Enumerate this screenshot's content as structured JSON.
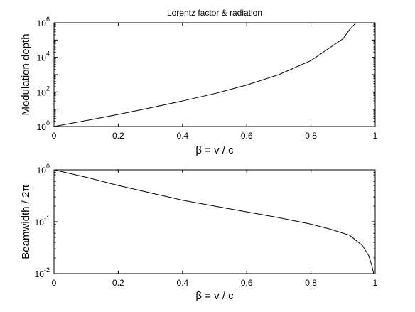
{
  "chart_data": [
    {
      "type": "line",
      "title": "Lorentz factor & radiation",
      "xlabel": "β = v / c",
      "ylabel": "Modulation depth",
      "xlim": [
        0,
        1
      ],
      "ylim": [
        1,
        1000000
      ],
      "yscale": "log",
      "grid": false,
      "x_ticks": [
        "0",
        "0.2",
        "0.4",
        "0.6",
        "0.8",
        "1"
      ],
      "y_ticks": [
        {
          "base": "10",
          "exp": "0"
        },
        {
          "base": "10",
          "exp": "2"
        },
        {
          "base": "10",
          "exp": "4"
        },
        {
          "base": "10",
          "exp": "6"
        }
      ],
      "series": [
        {
          "color": "#000000",
          "x": [
            0,
            0.1,
            0.2,
            0.3,
            0.4,
            0.5,
            0.6,
            0.7,
            0.8,
            0.9,
            0.92,
            0.94
          ],
          "y": [
            1,
            2.2,
            5,
            12,
            30,
            80,
            250,
            1000,
            6500,
            120000,
            400000,
            1000000
          ]
        }
      ]
    },
    {
      "type": "line",
      "title": "",
      "xlabel": "β = v / c",
      "ylabel": "Beamwidth / 2π",
      "xlim": [
        0,
        1
      ],
      "ylim": [
        0.01,
        1
      ],
      "yscale": "log",
      "grid": false,
      "x_ticks": [
        "0",
        "0.2",
        "0.4",
        "0.6",
        "0.8",
        "1"
      ],
      "y_ticks": [
        {
          "base": "10",
          "exp": "0"
        },
        {
          "base": "10",
          "exp": "-1"
        },
        {
          "base": "10",
          "exp": "-2"
        }
      ],
      "series": [
        {
          "color": "#000000",
          "x": [
            0,
            0.1,
            0.2,
            0.3,
            0.4,
            0.5,
            0.6,
            0.7,
            0.8,
            0.86,
            0.92,
            0.96,
            0.98,
            0.99,
            0.995
          ],
          "y": [
            1,
            0.72,
            0.5,
            0.36,
            0.26,
            0.2,
            0.155,
            0.12,
            0.09,
            0.072,
            0.055,
            0.035,
            0.022,
            0.014,
            0.01
          ]
        }
      ]
    }
  ]
}
